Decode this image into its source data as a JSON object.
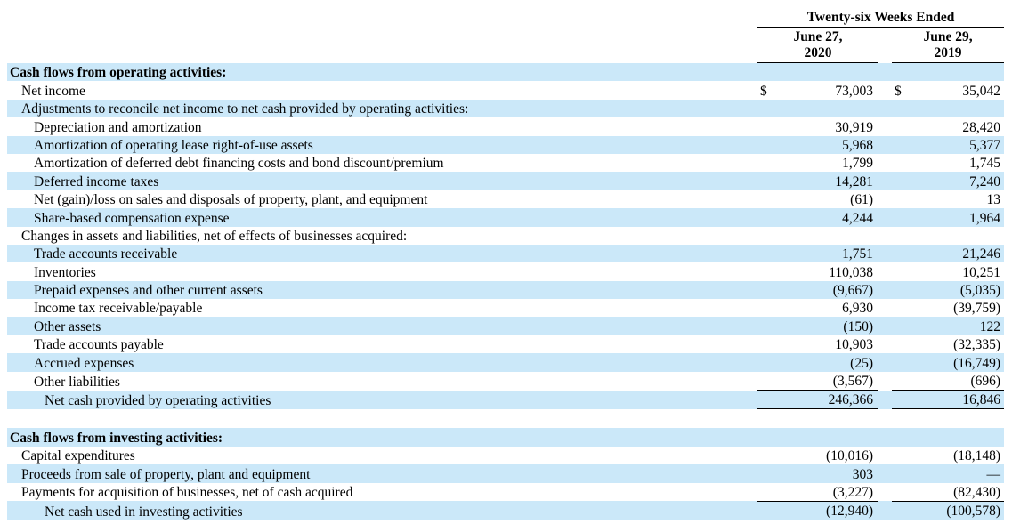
{
  "table": {
    "period_header": "Twenty-six Weeks Ended",
    "columns": [
      {
        "line1": "June 27,",
        "line2": "2020"
      },
      {
        "line1": "June 29,",
        "line2": "2019"
      }
    ],
    "currency_symbol": "$",
    "shade_color": "#cbe8f9",
    "rows": [
      {
        "label": "Cash flows from operating activities:",
        "indent": 0,
        "bold": true,
        "shaded": true,
        "dollar": false,
        "v1": "",
        "v2": "",
        "rule": false
      },
      {
        "label": "Net income",
        "indent": 1,
        "bold": false,
        "shaded": false,
        "dollar": true,
        "v1": "73,003",
        "v2": "35,042",
        "rule": false
      },
      {
        "label": "Adjustments to reconcile net income to net cash provided by operating activities:",
        "indent": 1,
        "bold": false,
        "shaded": true,
        "dollar": false,
        "v1": "",
        "v2": "",
        "rule": false
      },
      {
        "label": "Depreciation and amortization",
        "indent": 2,
        "bold": false,
        "shaded": false,
        "dollar": false,
        "v1": "30,919",
        "v2": "28,420",
        "rule": false
      },
      {
        "label": "Amortization of operating lease right-of-use assets",
        "indent": 2,
        "bold": false,
        "shaded": true,
        "dollar": false,
        "v1": "5,968",
        "v2": "5,377",
        "rule": false
      },
      {
        "label": "Amortization of deferred debt financing costs and bond discount/premium",
        "indent": 2,
        "bold": false,
        "shaded": false,
        "dollar": false,
        "v1": "1,799",
        "v2": "1,745",
        "rule": false
      },
      {
        "label": "Deferred income taxes",
        "indent": 2,
        "bold": false,
        "shaded": true,
        "dollar": false,
        "v1": "14,281",
        "v2": "7,240",
        "rule": false
      },
      {
        "label": "Net (gain)/loss on sales and disposals of property, plant, and equipment",
        "indent": 2,
        "bold": false,
        "shaded": false,
        "dollar": false,
        "v1": "(61)",
        "v2": "13",
        "rule": false
      },
      {
        "label": "Share-based compensation expense",
        "indent": 2,
        "bold": false,
        "shaded": true,
        "dollar": false,
        "v1": "4,244",
        "v2": "1,964",
        "rule": false
      },
      {
        "label": "Changes in assets and liabilities, net of effects of businesses acquired:",
        "indent": 1,
        "bold": false,
        "shaded": false,
        "dollar": false,
        "v1": "",
        "v2": "",
        "rule": false
      },
      {
        "label": "Trade accounts receivable",
        "indent": 2,
        "bold": false,
        "shaded": true,
        "dollar": false,
        "v1": "1,751",
        "v2": "21,246",
        "rule": false
      },
      {
        "label": "Inventories",
        "indent": 2,
        "bold": false,
        "shaded": false,
        "dollar": false,
        "v1": "110,038",
        "v2": "10,251",
        "rule": false
      },
      {
        "label": "Prepaid expenses and other current assets",
        "indent": 2,
        "bold": false,
        "shaded": true,
        "dollar": false,
        "v1": "(9,667)",
        "v2": "(5,035)",
        "rule": false
      },
      {
        "label": "Income tax receivable/payable",
        "indent": 2,
        "bold": false,
        "shaded": false,
        "dollar": false,
        "v1": "6,930",
        "v2": "(39,759)",
        "rule": false
      },
      {
        "label": "Other assets",
        "indent": 2,
        "bold": false,
        "shaded": true,
        "dollar": false,
        "v1": "(150)",
        "v2": "122",
        "rule": false
      },
      {
        "label": "Trade accounts payable",
        "indent": 2,
        "bold": false,
        "shaded": false,
        "dollar": false,
        "v1": "10,903",
        "v2": "(32,335)",
        "rule": false
      },
      {
        "label": "Accrued expenses",
        "indent": 2,
        "bold": false,
        "shaded": true,
        "dollar": false,
        "v1": "(25)",
        "v2": "(16,749)",
        "rule": false
      },
      {
        "label": "Other liabilities",
        "indent": 2,
        "bold": false,
        "shaded": false,
        "dollar": false,
        "v1": "(3,567)",
        "v2": "(696)",
        "rule": true
      },
      {
        "label": "Net cash provided by operating activities",
        "indent": 3,
        "bold": false,
        "shaded": true,
        "dollar": false,
        "v1": "246,366",
        "v2": "16,846",
        "rule": true
      },
      {
        "spacer": true
      },
      {
        "label": "Cash flows from investing activities:",
        "indent": 0,
        "bold": true,
        "shaded": true,
        "dollar": false,
        "v1": "",
        "v2": "",
        "rule": false
      },
      {
        "label": "Capital expenditures",
        "indent": 1,
        "bold": false,
        "shaded": false,
        "dollar": false,
        "v1": "(10,016)",
        "v2": "(18,148)",
        "rule": false
      },
      {
        "label": "Proceeds from sale of property, plant and equipment",
        "indent": 1,
        "bold": false,
        "shaded": true,
        "dollar": false,
        "v1": "303",
        "v2": "—",
        "rule": false
      },
      {
        "label": "Payments for acquisition of businesses, net of cash acquired",
        "indent": 1,
        "bold": false,
        "shaded": false,
        "dollar": false,
        "v1": "(3,227)",
        "v2": "(82,430)",
        "rule": true
      },
      {
        "label": "Net cash used in investing activities",
        "indent": 3,
        "bold": false,
        "shaded": true,
        "dollar": false,
        "v1": "(12,940)",
        "v2": "(100,578)",
        "rule": true
      }
    ]
  }
}
